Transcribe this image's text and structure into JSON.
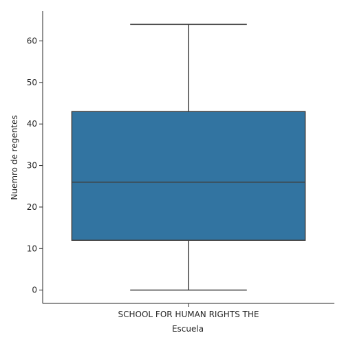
{
  "chart_data": {
    "type": "box",
    "xlabel": "Escuela",
    "ylabel": "Nuemro de regentes",
    "categories": [
      "SCHOOL FOR HUMAN RIGHTS THE"
    ],
    "boxes": [
      {
        "category": "SCHOOL FOR HUMAN RIGHTS THE",
        "min": 0,
        "q1": 12,
        "median": 26,
        "q3": 43,
        "max": 64
      }
    ],
    "yticks": [
      0,
      10,
      20,
      30,
      40,
      50,
      60
    ],
    "ylim": [
      -3.2,
      67.2
    ],
    "grid": false,
    "box_color": "#3274a1",
    "line_color": "#3f3f3f",
    "axis_color": "#262626"
  }
}
